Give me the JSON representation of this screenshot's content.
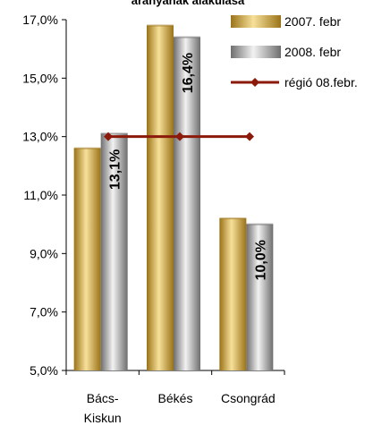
{
  "chart_data": {
    "type": "bar",
    "title": "arányának alakulása",
    "categories": [
      [
        "Bács-",
        "Kiskun"
      ],
      [
        "Békés"
      ],
      [
        "Csongrád"
      ]
    ],
    "ylim": [
      5.0,
      17.0
    ],
    "yticks": [
      "5,0%",
      "7,0%",
      "9,0%",
      "11,0%",
      "13,0%",
      "15,0%",
      "17,0%"
    ],
    "ytick_values": [
      5,
      7,
      9,
      11,
      13,
      15,
      17
    ],
    "grid": false,
    "legend_position": "top-right",
    "series": [
      {
        "name": "2007. febr",
        "kind": "bar",
        "values": [
          12.6,
          16.8,
          10.2
        ],
        "colors": [
          "#9a7318",
          "#f7e09a"
        ]
      },
      {
        "name": "2008. febr",
        "kind": "bar",
        "values": [
          13.1,
          16.4,
          10.0
        ],
        "data_labels": [
          "13,1%",
          "16,4%",
          "10,0%"
        ],
        "colors": [
          "#6e6e6e",
          "#f2f2f2"
        ]
      },
      {
        "name": "régió 08.febr.",
        "kind": "line",
        "values": [
          13.0,
          13.0,
          13.0
        ],
        "colors": [
          "#8b1a0a",
          "#8b1a0a"
        ]
      }
    ]
  }
}
